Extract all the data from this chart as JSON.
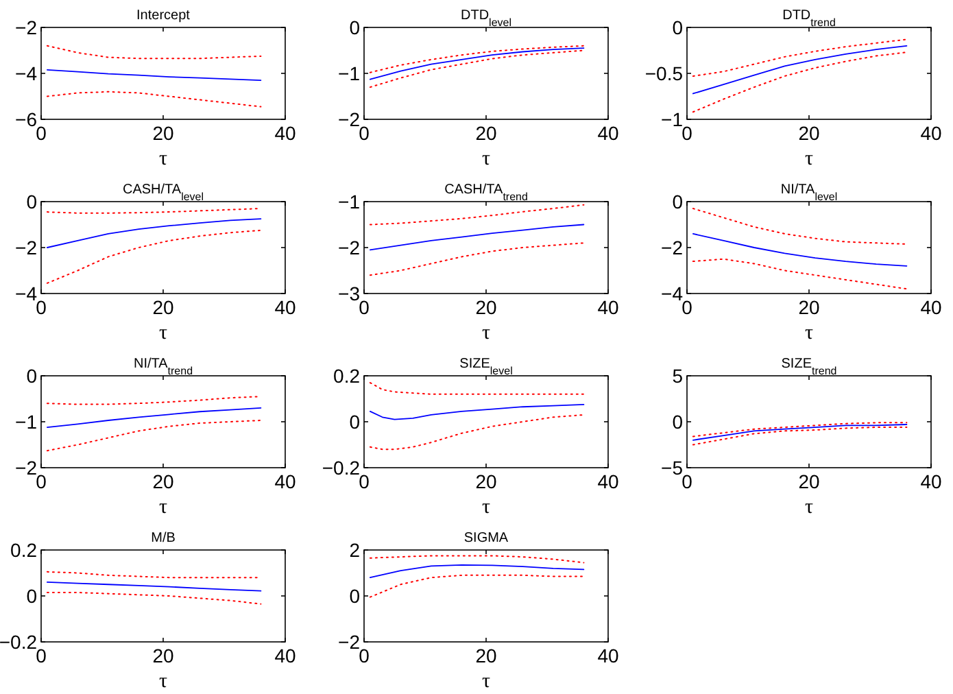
{
  "chart_data": [
    {
      "type": "line",
      "title": "Intercept",
      "xlabel": "τ",
      "x": [
        1,
        6,
        11,
        16,
        21,
        26,
        31,
        36
      ],
      "xlim": [
        0,
        40
      ],
      "xticks": [
        0,
        20,
        40
      ],
      "ylim": [
        -6,
        -2
      ],
      "yticks": [
        -6,
        -4,
        -2
      ],
      "series": [
        {
          "color": "#0000ff",
          "line_style": "solid",
          "values": [
            -3.85,
            -3.93,
            -4.02,
            -4.08,
            -4.15,
            -4.2,
            -4.25,
            -4.3
          ]
        },
        {
          "color": "#ff0000",
          "line_style": "dotted",
          "values": [
            -2.8,
            -3.1,
            -3.3,
            -3.35,
            -3.35,
            -3.35,
            -3.3,
            -3.25
          ]
        },
        {
          "color": "#ff0000",
          "line_style": "dotted",
          "values": [
            -5.0,
            -4.85,
            -4.8,
            -4.85,
            -5.0,
            -5.15,
            -5.3,
            -5.45
          ]
        }
      ]
    },
    {
      "type": "line",
      "title": "DTD$_{level}$",
      "xlabel": "τ",
      "x": [
        1,
        6,
        11,
        16,
        21,
        26,
        31,
        36
      ],
      "xlim": [
        0,
        40
      ],
      "xticks": [
        0,
        20,
        40
      ],
      "ylim": [
        -2,
        0
      ],
      "yticks": [
        -2,
        -1,
        0
      ],
      "series": [
        {
          "color": "#0000ff",
          "line_style": "solid",
          "values": [
            -1.13,
            -0.95,
            -0.8,
            -0.7,
            -0.6,
            -0.53,
            -0.48,
            -0.45
          ]
        },
        {
          "color": "#ff0000",
          "line_style": "dotted",
          "values": [
            -0.98,
            -0.82,
            -0.7,
            -0.6,
            -0.52,
            -0.47,
            -0.43,
            -0.4
          ]
        },
        {
          "color": "#ff0000",
          "line_style": "dotted",
          "values": [
            -1.3,
            -1.1,
            -0.92,
            -0.8,
            -0.68,
            -0.6,
            -0.55,
            -0.5
          ]
        }
      ]
    },
    {
      "type": "line",
      "title": "DTD$_{trend}$",
      "xlabel": "τ",
      "x": [
        1,
        6,
        11,
        16,
        21,
        26,
        31,
        36
      ],
      "xlim": [
        0,
        40
      ],
      "xticks": [
        0,
        20,
        40
      ],
      "ylim": [
        -1,
        0
      ],
      "yticks": [
        -1,
        -0.5,
        0
      ],
      "series": [
        {
          "color": "#0000ff",
          "line_style": "solid",
          "values": [
            -0.72,
            -0.62,
            -0.52,
            -0.42,
            -0.35,
            -0.29,
            -0.24,
            -0.2
          ]
        },
        {
          "color": "#ff0000",
          "line_style": "dotted",
          "values": [
            -0.53,
            -0.48,
            -0.4,
            -0.32,
            -0.26,
            -0.21,
            -0.17,
            -0.13
          ]
        },
        {
          "color": "#ff0000",
          "line_style": "dotted",
          "values": [
            -0.92,
            -0.78,
            -0.65,
            -0.53,
            -0.44,
            -0.37,
            -0.31,
            -0.27
          ]
        }
      ]
    },
    {
      "type": "line",
      "title": "CASH/TA$_{level}$",
      "xlabel": "τ",
      "x": [
        1,
        6,
        11,
        16,
        21,
        26,
        31,
        36
      ],
      "xlim": [
        0,
        40
      ],
      "xticks": [
        0,
        20,
        40
      ],
      "ylim": [
        -4,
        0
      ],
      "yticks": [
        -4,
        -2,
        0
      ],
      "series": [
        {
          "color": "#0000ff",
          "line_style": "solid",
          "values": [
            -2.0,
            -1.7,
            -1.4,
            -1.2,
            -1.05,
            -0.93,
            -0.82,
            -0.75
          ]
        },
        {
          "color": "#ff0000",
          "line_style": "dotted",
          "values": [
            -0.45,
            -0.5,
            -0.5,
            -0.48,
            -0.45,
            -0.4,
            -0.35,
            -0.3
          ]
        },
        {
          "color": "#ff0000",
          "line_style": "dotted",
          "values": [
            -3.55,
            -3.0,
            -2.4,
            -2.0,
            -1.7,
            -1.5,
            -1.35,
            -1.25
          ]
        }
      ]
    },
    {
      "type": "line",
      "title": "CASH/TA$_{trend}$",
      "xlabel": "τ",
      "x": [
        1,
        6,
        11,
        16,
        21,
        26,
        31,
        36
      ],
      "xlim": [
        0,
        40
      ],
      "xticks": [
        0,
        20,
        40
      ],
      "ylim": [
        -3,
        -1
      ],
      "yticks": [
        -3,
        -2,
        -1
      ],
      "series": [
        {
          "color": "#0000ff",
          "line_style": "solid",
          "values": [
            -2.05,
            -1.95,
            -1.85,
            -1.77,
            -1.69,
            -1.62,
            -1.55,
            -1.5
          ]
        },
        {
          "color": "#ff0000",
          "line_style": "dotted",
          "values": [
            -1.5,
            -1.47,
            -1.42,
            -1.37,
            -1.3,
            -1.22,
            -1.15,
            -1.07
          ]
        },
        {
          "color": "#ff0000",
          "line_style": "dotted",
          "values": [
            -2.6,
            -2.5,
            -2.35,
            -2.2,
            -2.08,
            -2.0,
            -1.95,
            -1.9
          ]
        }
      ]
    },
    {
      "type": "line",
      "title": "NI/TA$_{level}$",
      "xlabel": "τ",
      "x": [
        1,
        6,
        11,
        16,
        21,
        26,
        31,
        36
      ],
      "xlim": [
        0,
        40
      ],
      "xticks": [
        0,
        20,
        40
      ],
      "ylim": [
        -4,
        0
      ],
      "yticks": [
        -4,
        -2,
        0
      ],
      "series": [
        {
          "color": "#0000ff",
          "line_style": "solid",
          "values": [
            -1.4,
            -1.7,
            -2.0,
            -2.25,
            -2.45,
            -2.6,
            -2.72,
            -2.8
          ]
        },
        {
          "color": "#ff0000",
          "line_style": "dotted",
          "values": [
            -0.3,
            -0.7,
            -1.1,
            -1.4,
            -1.6,
            -1.75,
            -1.8,
            -1.85
          ]
        },
        {
          "color": "#ff0000",
          "line_style": "dotted",
          "values": [
            -2.6,
            -2.5,
            -2.7,
            -3.0,
            -3.2,
            -3.4,
            -3.6,
            -3.8
          ]
        }
      ]
    },
    {
      "type": "line",
      "title": "NI/TA$_{trend}$",
      "xlabel": "τ",
      "x": [
        1,
        6,
        11,
        16,
        21,
        26,
        31,
        36
      ],
      "xlim": [
        0,
        40
      ],
      "xticks": [
        0,
        20,
        40
      ],
      "ylim": [
        -2,
        0
      ],
      "yticks": [
        -2,
        -1,
        0
      ],
      "series": [
        {
          "color": "#0000ff",
          "line_style": "solid",
          "values": [
            -1.12,
            -1.05,
            -0.97,
            -0.9,
            -0.84,
            -0.78,
            -0.74,
            -0.7
          ]
        },
        {
          "color": "#ff0000",
          "line_style": "dotted",
          "values": [
            -0.6,
            -0.62,
            -0.62,
            -0.6,
            -0.57,
            -0.53,
            -0.48,
            -0.45
          ]
        },
        {
          "color": "#ff0000",
          "line_style": "dotted",
          "values": [
            -1.63,
            -1.5,
            -1.35,
            -1.2,
            -1.1,
            -1.03,
            -1.0,
            -0.97
          ]
        }
      ]
    },
    {
      "type": "line",
      "title": "SIZE$_{level}$",
      "xlabel": "τ",
      "x": [
        1,
        3,
        5,
        8,
        11,
        16,
        21,
        26,
        31,
        36
      ],
      "xlim": [
        0,
        40
      ],
      "xticks": [
        0,
        20,
        40
      ],
      "ylim": [
        -0.2,
        0.2
      ],
      "yticks": [
        -0.2,
        0,
        0.2
      ],
      "series": [
        {
          "color": "#0000ff",
          "line_style": "solid",
          "values": [
            0.045,
            0.02,
            0.01,
            0.015,
            0.03,
            0.045,
            0.055,
            0.065,
            0.07,
            0.075
          ]
        },
        {
          "color": "#ff0000",
          "line_style": "dotted",
          "values": [
            0.17,
            0.14,
            0.13,
            0.125,
            0.12,
            0.12,
            0.12,
            0.12,
            0.12,
            0.12
          ]
        },
        {
          "color": "#ff0000",
          "line_style": "dotted",
          "values": [
            -0.11,
            -0.12,
            -0.12,
            -0.11,
            -0.09,
            -0.05,
            -0.02,
            0.0,
            0.02,
            0.03
          ]
        }
      ]
    },
    {
      "type": "line",
      "title": "SIZE$_{trend}$",
      "xlabel": "τ",
      "x": [
        1,
        6,
        11,
        16,
        21,
        26,
        31,
        36
      ],
      "xlim": [
        0,
        40
      ],
      "xticks": [
        0,
        20,
        40
      ],
      "ylim": [
        -5,
        5
      ],
      "yticks": [
        -5,
        0,
        5
      ],
      "series": [
        {
          "color": "#0000ff",
          "line_style": "solid",
          "values": [
            -2.0,
            -1.5,
            -1.0,
            -0.8,
            -0.6,
            -0.4,
            -0.4,
            -0.3
          ]
        },
        {
          "color": "#ff0000",
          "line_style": "dotted",
          "values": [
            -1.6,
            -1.2,
            -0.8,
            -0.6,
            -0.4,
            -0.2,
            -0.1,
            -0.1
          ]
        },
        {
          "color": "#ff0000",
          "line_style": "dotted",
          "values": [
            -2.5,
            -1.9,
            -1.3,
            -1.0,
            -0.9,
            -0.7,
            -0.6,
            -0.6
          ]
        }
      ]
    },
    {
      "type": "line",
      "title": "M/B",
      "xlabel": "τ",
      "x": [
        1,
        6,
        11,
        16,
        21,
        26,
        31,
        36
      ],
      "xlim": [
        0,
        40
      ],
      "xticks": [
        0,
        20,
        40
      ],
      "ylim": [
        -0.2,
        0.2
      ],
      "yticks": [
        -0.2,
        0,
        0.2
      ],
      "series": [
        {
          "color": "#0000ff",
          "line_style": "solid",
          "values": [
            0.06,
            0.055,
            0.05,
            0.045,
            0.04,
            0.033,
            0.027,
            0.022
          ]
        },
        {
          "color": "#ff0000",
          "line_style": "dotted",
          "values": [
            0.105,
            0.1,
            0.09,
            0.085,
            0.08,
            0.08,
            0.08,
            0.08
          ]
        },
        {
          "color": "#ff0000",
          "line_style": "dotted",
          "values": [
            0.015,
            0.015,
            0.01,
            0.005,
            0,
            -0.01,
            -0.02,
            -0.035
          ]
        }
      ]
    },
    {
      "type": "line",
      "title": "SIGMA",
      "xlabel": "τ",
      "x": [
        1,
        6,
        11,
        16,
        21,
        26,
        31,
        36
      ],
      "xlim": [
        0,
        40
      ],
      "xticks": [
        0,
        20,
        40
      ],
      "ylim": [
        -2,
        2
      ],
      "yticks": [
        -2,
        0,
        2
      ],
      "series": [
        {
          "color": "#0000ff",
          "line_style": "solid",
          "values": [
            0.8,
            1.1,
            1.3,
            1.35,
            1.33,
            1.28,
            1.2,
            1.15
          ]
        },
        {
          "color": "#ff0000",
          "line_style": "dotted",
          "values": [
            1.65,
            1.7,
            1.75,
            1.75,
            1.75,
            1.7,
            1.6,
            1.45
          ]
        },
        {
          "color": "#ff0000",
          "line_style": "dotted",
          "values": [
            -0.05,
            0.5,
            0.8,
            0.9,
            0.9,
            0.9,
            0.85,
            0.85
          ]
        }
      ]
    }
  ]
}
